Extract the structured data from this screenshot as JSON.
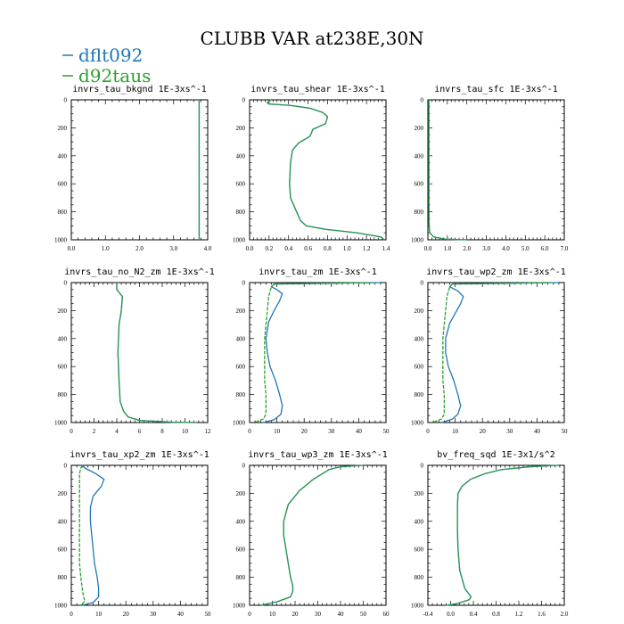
{
  "figure": {
    "title": "CLUBB VAR at238E,30N",
    "legend": [
      {
        "name": "dflt092",
        "color": "#1f77b4"
      },
      {
        "name": "d92taus",
        "color": "#2ca02c"
      }
    ]
  },
  "chart_data": [
    {
      "type": "line",
      "title": "invrs_tau_bkgnd   1E-3xs^-1",
      "xlim": [
        0,
        4
      ],
      "ylim": [
        1000,
        0
      ],
      "xticks": [
        "0.0",
        "1.0",
        "2.0",
        "3.0",
        "4.0"
      ],
      "yticks": [
        "0",
        "200",
        "400",
        "600",
        "800",
        "1000"
      ],
      "series": [
        {
          "name": "dflt092",
          "color": "#1f77b4",
          "dashed": false,
          "x": [
            3.75,
            3.75
          ],
          "y": [
            0,
            1000
          ]
        },
        {
          "name": "d92taus",
          "color": "#2ca02c",
          "dashed": true,
          "x": [
            3.75,
            3.75
          ],
          "y": [
            0,
            1000
          ]
        }
      ]
    },
    {
      "type": "line",
      "title": "invrs_tau_shear   1E-3xs^-1",
      "xlim": [
        0,
        1.4
      ],
      "ylim": [
        1000,
        0
      ],
      "xticks": [
        "0.0",
        "0.2",
        "0.4",
        "0.6",
        "0.8",
        "1.0",
        "1.2",
        "1.4"
      ],
      "yticks": [
        "0",
        "200",
        "400",
        "600",
        "800",
        "1000"
      ],
      "series": [
        {
          "name": "dflt092",
          "color": "#1f77b4",
          "dashed": false,
          "x": [
            0.22,
            0.18,
            0.2,
            0.42,
            0.62,
            0.75,
            0.8,
            0.78,
            0.65,
            0.62,
            0.5,
            0.44,
            0.42,
            0.41,
            0.42,
            0.47,
            0.52,
            0.58,
            0.78,
            1.1,
            1.35,
            1.38
          ],
          "y": [
            0,
            20,
            30,
            40,
            60,
            90,
            120,
            170,
            210,
            260,
            310,
            360,
            450,
            600,
            700,
            780,
            860,
            900,
            925,
            950,
            980,
            1000
          ]
        },
        {
          "name": "d92taus",
          "color": "#2ca02c",
          "dashed": true,
          "x": [
            0.22,
            0.18,
            0.2,
            0.42,
            0.62,
            0.75,
            0.8,
            0.78,
            0.65,
            0.62,
            0.5,
            0.44,
            0.42,
            0.41,
            0.42,
            0.47,
            0.52,
            0.58,
            0.78,
            1.1,
            1.35,
            1.38
          ],
          "y": [
            0,
            20,
            30,
            40,
            60,
            90,
            120,
            170,
            210,
            260,
            310,
            360,
            450,
            600,
            700,
            780,
            860,
            900,
            925,
            950,
            980,
            1000
          ]
        }
      ]
    },
    {
      "type": "line",
      "title": "invrs_tau_sfc   1E-3xs^-1",
      "xlim": [
        0,
        7
      ],
      "ylim": [
        1000,
        0
      ],
      "xticks": [
        "0.0",
        "1.0",
        "2.0",
        "3.0",
        "4.0",
        "5.0",
        "6.0",
        "7.0"
      ],
      "yticks": [
        "0",
        "200",
        "400",
        "600",
        "800",
        "1000"
      ],
      "series": [
        {
          "name": "dflt092",
          "color": "#1f77b4",
          "dashed": false,
          "x": [
            0.05,
            0.05,
            0.06,
            0.1,
            0.3,
            0.9,
            2.0
          ],
          "y": [
            0,
            700,
            900,
            950,
            980,
            995,
            1000
          ]
        },
        {
          "name": "d92taus",
          "color": "#2ca02c",
          "dashed": true,
          "x": [
            0.05,
            0.05,
            0.06,
            0.1,
            0.3,
            0.9,
            2.0
          ],
          "y": [
            0,
            700,
            900,
            950,
            980,
            995,
            1000
          ]
        }
      ]
    },
    {
      "type": "line",
      "title": "invrs_tau_no_N2_zm   1E-3xs^-1",
      "xlim": [
        0,
        12
      ],
      "ylim": [
        1000,
        0
      ],
      "xticks": [
        "0",
        "2",
        "4",
        "6",
        "8",
        "10",
        "12"
      ],
      "yticks": [
        "0",
        "200",
        "400",
        "600",
        "800",
        "1000"
      ],
      "series": [
        {
          "name": "dflt092",
          "color": "#1f77b4",
          "dashed": false,
          "x": [
            4.0,
            4.0,
            4.5,
            4.4,
            4.2,
            4.1,
            4.2,
            4.3,
            4.6,
            5.0,
            6.0,
            9.0,
            11.0
          ],
          "y": [
            0,
            50,
            100,
            200,
            300,
            500,
            700,
            850,
            920,
            960,
            985,
            998,
            1000
          ]
        },
        {
          "name": "d92taus",
          "color": "#2ca02c",
          "dashed": true,
          "x": [
            4.0,
            4.0,
            4.5,
            4.4,
            4.2,
            4.1,
            4.2,
            4.3,
            4.6,
            5.0,
            6.0,
            9.0,
            11.0
          ],
          "y": [
            0,
            50,
            100,
            200,
            300,
            500,
            700,
            850,
            920,
            960,
            985,
            998,
            1000
          ]
        }
      ]
    },
    {
      "type": "line",
      "title": "invrs_tau_zm   1E-3xs^-1",
      "xlim": [
        0,
        50
      ],
      "ylim": [
        1000,
        0
      ],
      "xticks": [
        "0",
        "10",
        "20",
        "30",
        "40",
        "50"
      ],
      "yticks": [
        "0",
        "200",
        "400",
        "600",
        "800",
        "1000"
      ],
      "series": [
        {
          "name": "dflt092",
          "color": "#1f77b4",
          "dashed": false,
          "x": [
            48,
            30,
            9,
            8,
            10,
            12,
            11,
            9,
            7,
            6,
            6.5,
            7.5,
            9.5,
            11,
            12,
            11.5,
            9,
            5
          ],
          "y": [
            0,
            5,
            10,
            30,
            50,
            80,
            130,
            200,
            280,
            400,
            500,
            600,
            700,
            800,
            880,
            940,
            980,
            1000
          ]
        },
        {
          "name": "d92taus",
          "color": "#2ca02c",
          "dashed": true,
          "x": [
            45,
            25,
            9,
            8,
            7.5,
            7,
            6.5,
            6,
            5.5,
            5.5,
            5.5,
            5.5,
            6,
            6,
            6,
            5,
            3,
            2
          ],
          "y": [
            0,
            5,
            10,
            30,
            60,
            100,
            200,
            300,
            400,
            500,
            600,
            700,
            800,
            880,
            940,
            975,
            990,
            1000
          ]
        }
      ]
    },
    {
      "type": "line",
      "title": "invrs_tau_wp2_zm   1E-3xs^-1",
      "xlim": [
        0,
        50
      ],
      "ylim": [
        1000,
        0
      ],
      "xticks": [
        "0",
        "10",
        "20",
        "30",
        "40",
        "50"
      ],
      "yticks": [
        "0",
        "200",
        "400",
        "600",
        "800",
        "1000"
      ],
      "series": [
        {
          "name": "dflt092",
          "color": "#1f77b4",
          "dashed": false,
          "x": [
            48,
            30,
            9,
            8,
            11,
            13,
            12,
            10,
            8,
            6.5,
            6.5,
            7.5,
            9.5,
            11,
            12,
            11,
            9,
            5
          ],
          "y": [
            0,
            5,
            10,
            30,
            60,
            100,
            150,
            220,
            290,
            400,
            500,
            600,
            700,
            800,
            880,
            940,
            975,
            1000
          ]
        },
        {
          "name": "d92taus",
          "color": "#2ca02c",
          "dashed": true,
          "x": [
            45,
            25,
            9,
            8,
            7.5,
            7,
            6.5,
            6,
            5.5,
            5.5,
            5.5,
            5.5,
            6,
            6,
            6,
            5,
            3,
            2
          ],
          "y": [
            0,
            5,
            10,
            30,
            60,
            100,
            200,
            300,
            400,
            500,
            600,
            700,
            800,
            880,
            940,
            975,
            990,
            1000
          ]
        }
      ]
    },
    {
      "type": "line",
      "title": "invrs_tau_xp2_zm   1E-3xs^-1",
      "xlim": [
        0,
        50
      ],
      "ylim": [
        1000,
        0
      ],
      "xticks": [
        "0",
        "10",
        "20",
        "30",
        "40",
        "50"
      ],
      "yticks": [
        "0",
        "200",
        "400",
        "600",
        "800",
        "1000"
      ],
      "series": [
        {
          "name": "dflt092",
          "color": "#1f77b4",
          "dashed": false,
          "x": [
            4,
            5,
            9,
            12,
            11,
            8,
            7,
            7,
            7.5,
            8,
            8.5,
            9.5,
            10,
            10,
            8,
            4
          ],
          "y": [
            0,
            20,
            60,
            100,
            150,
            220,
            300,
            400,
            500,
            600,
            700,
            800,
            880,
            940,
            980,
            1000
          ]
        },
        {
          "name": "d92taus",
          "color": "#2ca02c",
          "dashed": true,
          "x": [
            4,
            3.5,
            3,
            3,
            3,
            3,
            3,
            3,
            3,
            3,
            3.5,
            4,
            4.5,
            5,
            4,
            3
          ],
          "y": [
            0,
            20,
            60,
            100,
            200,
            300,
            400,
            500,
            600,
            700,
            800,
            880,
            940,
            970,
            990,
            1000
          ]
        }
      ]
    },
    {
      "type": "line",
      "title": "invrs_tau_wp3_zm   1E-3xs^-1",
      "xlim": [
        0,
        60
      ],
      "ylim": [
        1000,
        0
      ],
      "xticks": [
        "0",
        "10",
        "20",
        "30",
        "40",
        "50",
        "60"
      ],
      "yticks": [
        "0",
        "200",
        "400",
        "600",
        "800",
        "1000"
      ],
      "series": [
        {
          "name": "dflt092",
          "color": "#1f77b4",
          "dashed": false,
          "x": [
            50,
            40,
            35,
            32,
            28,
            22,
            17,
            15,
            15,
            16,
            17,
            18,
            19,
            19,
            18,
            12,
            5
          ],
          "y": [
            0,
            10,
            30,
            60,
            100,
            180,
            280,
            400,
            500,
            600,
            700,
            800,
            860,
            900,
            940,
            975,
            1000
          ]
        },
        {
          "name": "d92taus",
          "color": "#2ca02c",
          "dashed": true,
          "x": [
            50,
            40,
            35,
            32,
            28,
            22,
            17,
            15,
            15,
            16,
            17,
            18,
            19,
            19,
            18,
            12,
            5
          ],
          "y": [
            0,
            10,
            30,
            60,
            100,
            180,
            280,
            400,
            500,
            600,
            700,
            800,
            860,
            900,
            940,
            975,
            1000
          ]
        }
      ]
    },
    {
      "type": "line",
      "title": "bv_freq_sqd   1E-3x1/s^2",
      "xlim": [
        -0.4,
        2.0
      ],
      "ylim": [
        1000,
        0
      ],
      "xticks": [
        "-0.4",
        "0.0",
        "0.4",
        "0.8",
        "1.2",
        "1.6",
        "2.0"
      ],
      "yticks": [
        "0",
        "200",
        "400",
        "600",
        "800",
        "1000"
      ],
      "series": [
        {
          "name": "dflt092",
          "color": "#1f77b4",
          "dashed": false,
          "x": [
            1.9,
            1.4,
            0.9,
            0.6,
            0.35,
            0.2,
            0.13,
            0.12,
            0.12,
            0.13,
            0.16,
            0.25,
            0.36,
            0.33,
            0.1,
            -0.08
          ],
          "y": [
            0,
            10,
            30,
            60,
            100,
            150,
            200,
            300,
            450,
            600,
            750,
            880,
            940,
            960,
            990,
            1000
          ]
        },
        {
          "name": "d92taus",
          "color": "#2ca02c",
          "dashed": true,
          "x": [
            1.9,
            1.4,
            0.9,
            0.6,
            0.35,
            0.2,
            0.13,
            0.12,
            0.12,
            0.13,
            0.16,
            0.25,
            0.36,
            0.33,
            0.1,
            -0.08
          ],
          "y": [
            0,
            10,
            30,
            60,
            100,
            150,
            200,
            300,
            450,
            600,
            750,
            880,
            940,
            960,
            990,
            1000
          ]
        }
      ]
    }
  ]
}
